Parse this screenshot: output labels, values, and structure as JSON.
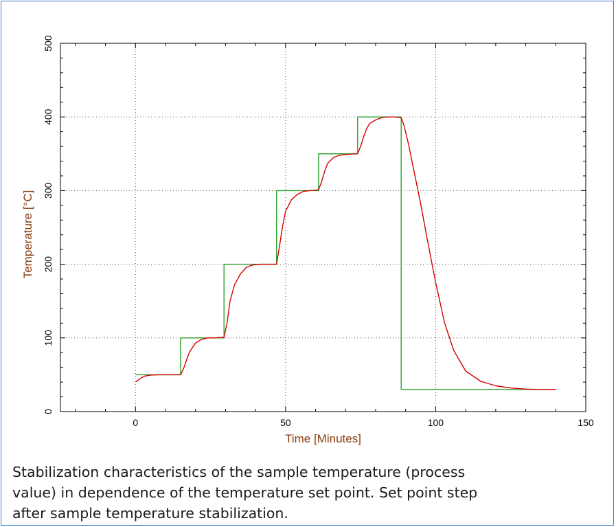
{
  "chart_data": {
    "type": "line",
    "title": "",
    "xlabel": "Time [Minutes]",
    "ylabel": "Temperature [°C]",
    "xlim": [
      -25,
      150
    ],
    "ylim": [
      0,
      500
    ],
    "xticks": [
      0,
      50,
      100,
      150
    ],
    "yticks": [
      0,
      100,
      200,
      300,
      400,
      500
    ],
    "grid": true,
    "legend": "none",
    "series": [
      {
        "color": "#2ca02c",
        "x": [
          0,
          15,
          15,
          29.5,
          29.5,
          47,
          47,
          61,
          61,
          74,
          74,
          88.5,
          88.5,
          140
        ],
        "y": [
          50,
          50,
          100,
          100,
          200,
          200,
          300,
          300,
          350,
          350,
          400,
          400,
          30,
          30
        ]
      },
      {
        "color": "#d40000",
        "x": [
          0,
          1,
          2,
          3,
          5,
          8,
          12,
          15,
          16,
          17,
          18,
          20,
          22,
          24,
          26,
          29.5,
          30.5,
          31.5,
          33,
          35,
          37,
          39,
          42,
          47,
          48,
          49,
          50,
          52,
          54,
          56,
          58,
          61,
          62,
          63,
          64,
          66,
          68,
          70,
          74,
          75,
          76,
          77,
          78,
          80,
          82,
          84,
          86,
          88.5,
          89.5,
          91,
          93,
          95,
          97,
          100,
          103,
          106,
          110,
          115,
          120,
          125,
          130,
          135,
          140
        ],
        "y": [
          40,
          43,
          46,
          48,
          49.5,
          50,
          50,
          50,
          58,
          70,
          81,
          93,
          98,
          100,
          100,
          101,
          120,
          150,
          172,
          187,
          196,
          199,
          200,
          200,
          225,
          252,
          272,
          288,
          295,
          299,
          300,
          301,
          312,
          326,
          337,
          345,
          348,
          349,
          350,
          360,
          373,
          384,
          391,
          396,
          399,
          400,
          400,
          399,
          388,
          362,
          322,
          282,
          238,
          175,
          120,
          83,
          55,
          41,
          35,
          32,
          30.5,
          30,
          30
        ]
      }
    ]
  },
  "caption": {
    "line1": "Stabilization characteristics of the sample temperature (process",
    "line2": "value) in dependence of the temperature set point. Set point step",
    "line3": "after sample temperature stabilization."
  }
}
